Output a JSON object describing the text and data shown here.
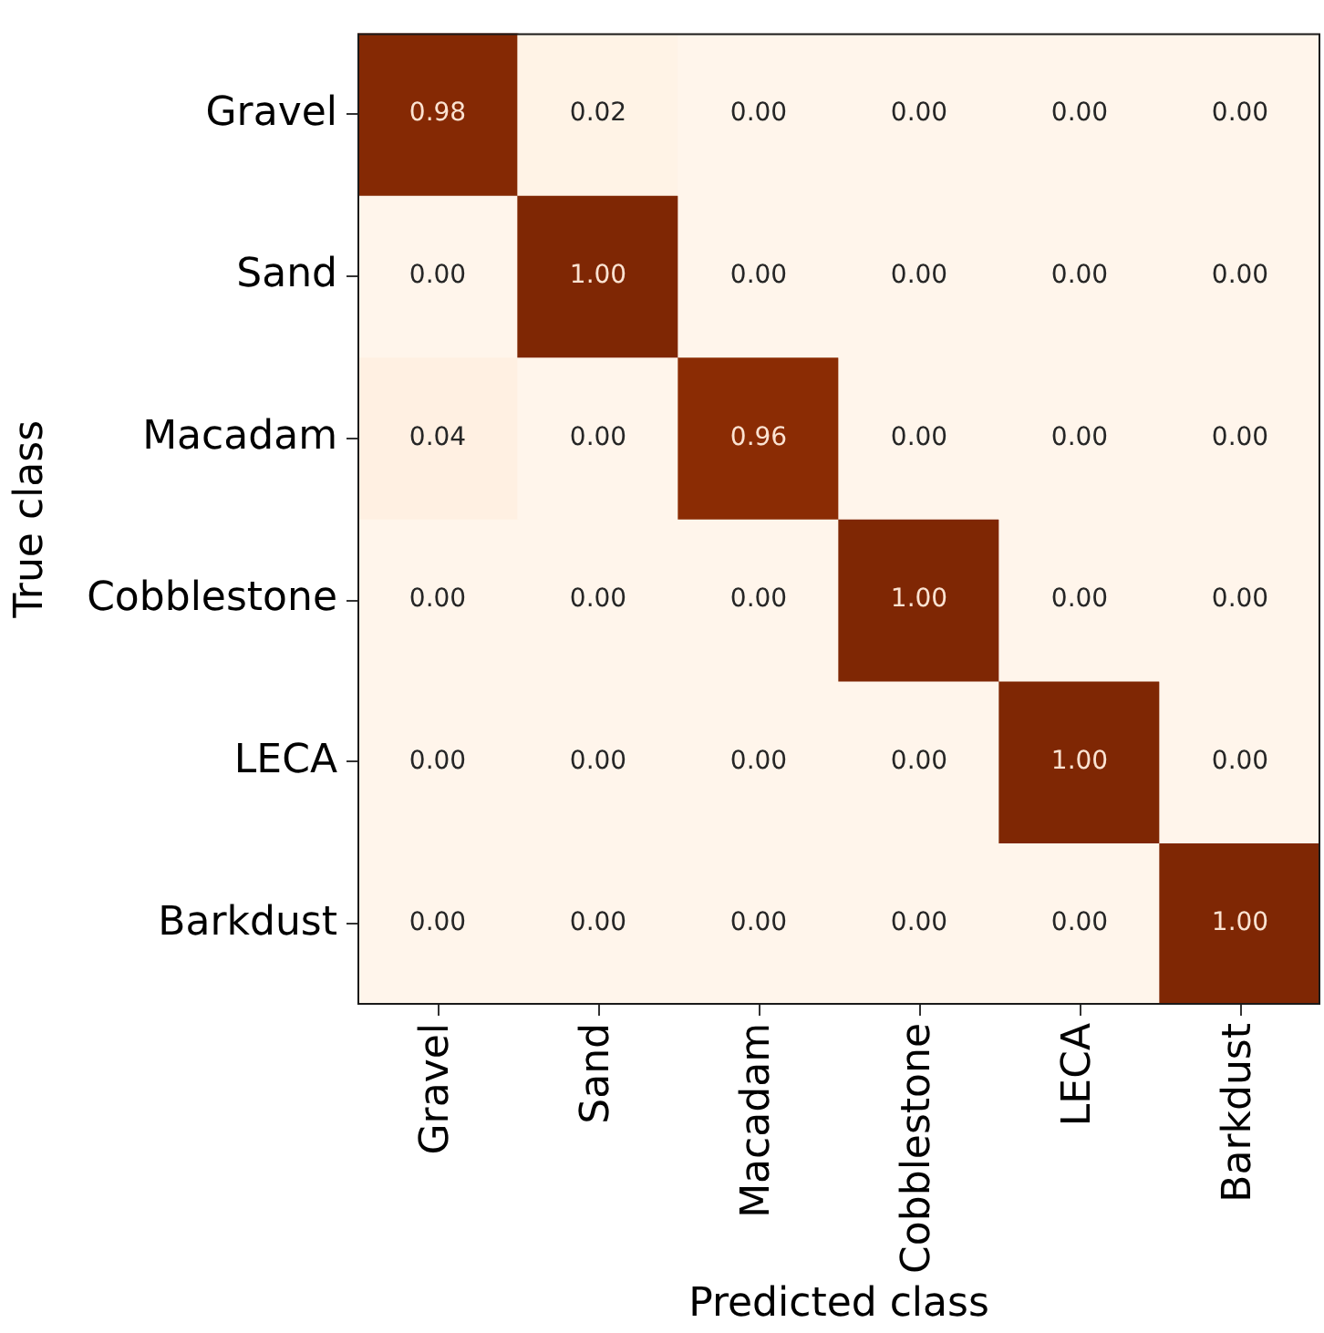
{
  "chart_data": {
    "type": "heatmap",
    "xlabel": "Predicted class",
    "ylabel": "True class",
    "categories": [
      "Gravel",
      "Sand",
      "Macadam",
      "Cobblestone",
      "LECA",
      "Barkdust"
    ],
    "y_categories": [
      "Gravel",
      "Sand",
      "Macadam",
      "Cobblestone",
      "LECA",
      "Barkdust"
    ],
    "cells": [
      [
        0.98,
        0.02,
        0,
        0,
        0,
        0
      ],
      [
        0,
        1,
        0,
        0,
        0,
        0
      ],
      [
        0.04,
        0,
        0.96,
        0,
        0,
        0
      ],
      [
        0,
        0,
        0,
        1,
        0,
        0
      ],
      [
        0,
        0,
        0,
        0,
        1,
        0
      ],
      [
        0,
        0,
        0,
        0,
        0,
        1
      ]
    ],
    "cell_labels": [
      [
        "0.98",
        "0.02",
        "0.00",
        "0.00",
        "0.00",
        "0.00"
      ],
      [
        "0.00",
        "1.00",
        "0.00",
        "0.00",
        "0.00",
        "0.00"
      ],
      [
        "0.04",
        "0.00",
        "0.96",
        "0.00",
        "0.00",
        "0.00"
      ],
      [
        "0.00",
        "0.00",
        "0.00",
        "1.00",
        "0.00",
        "0.00"
      ],
      [
        "0.00",
        "0.00",
        "0.00",
        "0.00",
        "1.00",
        "0.00"
      ],
      [
        "0.00",
        "0.00",
        "0.00",
        "0.00",
        "0.00",
        "1.00"
      ]
    ],
    "data_labels": true
  }
}
